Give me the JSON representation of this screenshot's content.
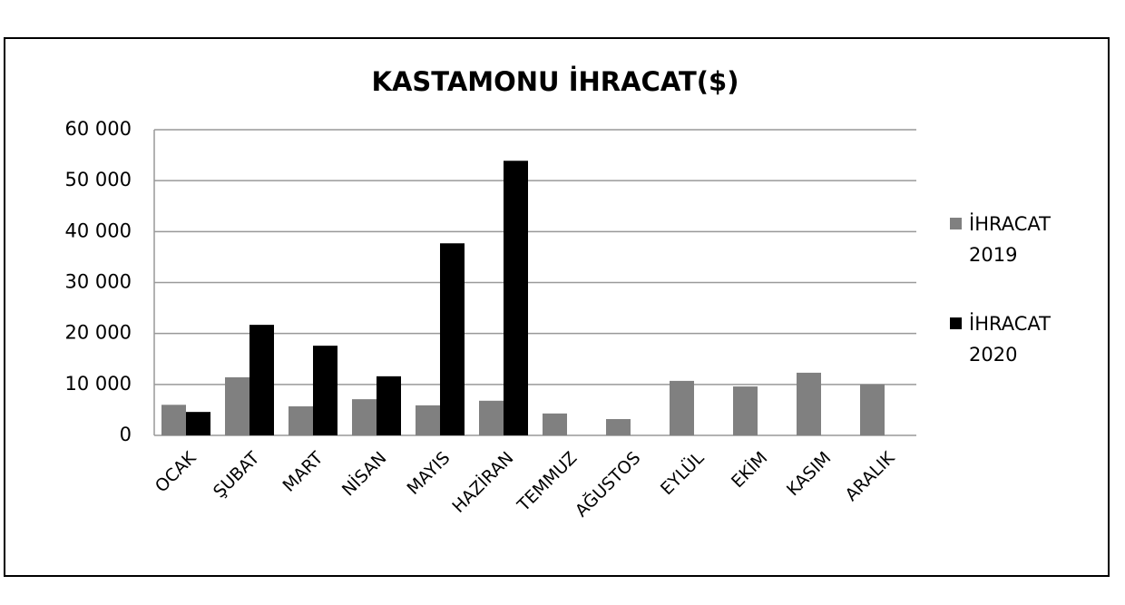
{
  "chart_data": {
    "type": "bar",
    "title": "KASTAMONU İHRACAT($)",
    "categories": [
      "OCAK",
      "ŞUBAT",
      "MART",
      "NİSAN",
      "MAYIS",
      "HAZİRAN",
      "TEMMUZ",
      "AĞUSTOS",
      "EYLÜL",
      "EKİM",
      "KASIM",
      "ARALIK"
    ],
    "series": [
      {
        "name": "İHRACAT 2019",
        "color": "#808080",
        "values": [
          6000,
          11400,
          5700,
          7100,
          5900,
          6800,
          4300,
          3200,
          10700,
          9600,
          12300,
          10000
        ]
      },
      {
        "name": "İHRACAT 2020",
        "color": "#000000",
        "values": [
          4600,
          21700,
          17600,
          11600,
          37700,
          53900,
          null,
          null,
          null,
          null,
          null,
          null
        ]
      }
    ],
    "ylim": [
      0,
      60000
    ],
    "yticks": [
      0,
      {
        "value": 10000,
        "label": "10 000"
      },
      {
        "value": 20000,
        "label": "20 000"
      },
      {
        "value": 30000,
        "label": "30 000"
      },
      {
        "value": 40000,
        "label": "40 000"
      },
      {
        "value": 50000,
        "label": "50 000"
      },
      {
        "value": 60000,
        "label": "60 000"
      }
    ],
    "grid": true,
    "legend": "right"
  }
}
